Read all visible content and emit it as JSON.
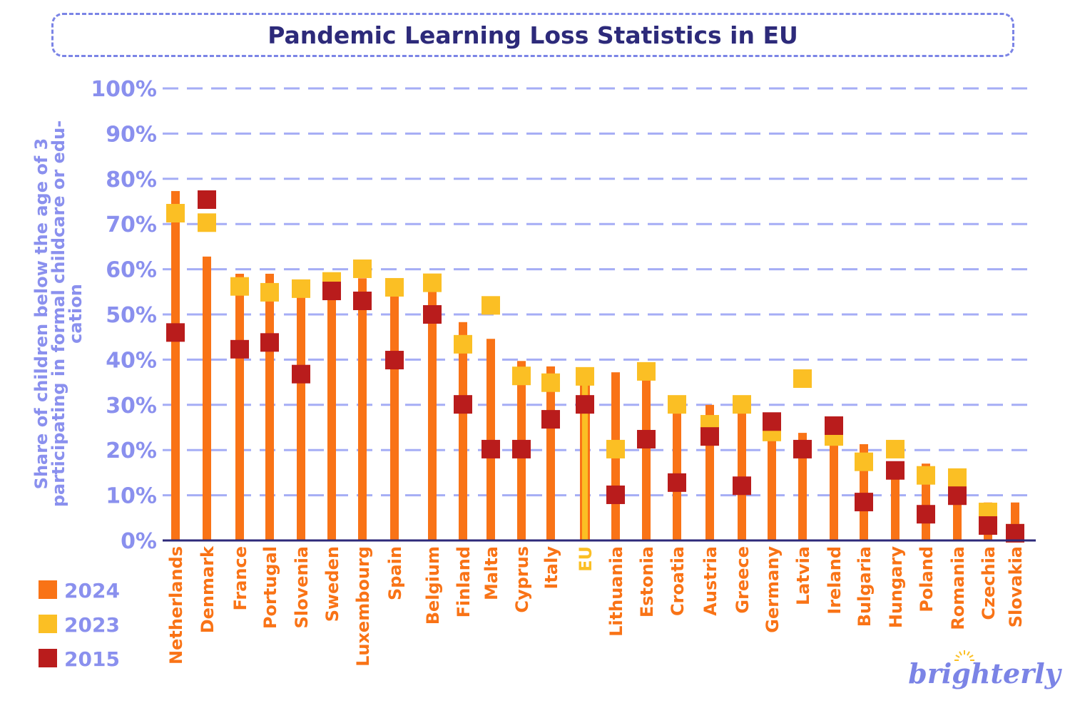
{
  "chart_data": {
    "type": "dot-bar",
    "title": "Pandemic Learning Loss Statistics in EU",
    "ylabel": [
      "Share of children below the age of 3",
      "participating in formal childcare or edu-",
      "cation"
    ],
    "ylim": [
      0,
      100
    ],
    "yticks": [
      "0%",
      "10%",
      "20%",
      "30%",
      "40%",
      "50%",
      "60%",
      "70%",
      "80%",
      "90%",
      "100%"
    ],
    "grid": true,
    "legend_position": "bottom-left",
    "categories": [
      "Netherlands",
      "Denmark",
      "France",
      "Portugal",
      "Slovenia",
      "Sweden",
      "Luxembourg",
      "Spain",
      "Belgium",
      "Finland",
      "Malta",
      "Cyprus",
      "Italy",
      "EU",
      "Lithuania",
      "Estonia",
      "Croatia",
      "Austria",
      "Greece",
      "Germany",
      "Latvia",
      "Ireland",
      "Bulgaria",
      "Hungary",
      "Poland",
      "Romania",
      "Czechia",
      "Slovakia"
    ],
    "highlight_category": "EU",
    "series": [
      {
        "name": "2024",
        "marker": "bar",
        "color": "#f97316",
        "values": [
          77.3,
          62.8,
          59.0,
          59.0,
          54.0,
          57.0,
          58.0,
          54.0,
          55.5,
          48.3,
          44.6,
          39.7,
          38.5,
          37.0,
          37.2,
          35.5,
          28.5,
          30.0,
          28.5,
          22.5,
          23.8,
          21.5,
          21.3,
          14.0,
          17.0,
          11.0,
          8.4,
          8.4
        ]
      },
      {
        "name": "2023",
        "marker": "square",
        "color": "#fbbf24",
        "values": [
          72.4,
          70.3,
          56.2,
          54.9,
          55.7,
          57.3,
          60.1,
          56.0,
          57.0,
          43.4,
          52.0,
          36.4,
          34.9,
          36.3,
          20.2,
          37.4,
          30.1,
          25.7,
          30.1,
          24.0,
          35.8,
          23.0,
          17.4,
          20.2,
          14.4,
          13.9,
          6.3,
          1.6
        ]
      },
      {
        "name": "2015",
        "marker": "square",
        "color": "#b91c1c",
        "values": [
          46.0,
          75.4,
          42.3,
          43.8,
          36.8,
          55.2,
          53.0,
          39.9,
          50.0,
          30.1,
          20.2,
          20.2,
          26.8,
          30.1,
          10.1,
          22.4,
          12.8,
          23.0,
          12.1,
          26.3,
          20.2,
          25.4,
          8.5,
          15.5,
          5.8,
          9.9,
          3.3,
          1.6
        ]
      }
    ]
  },
  "logo": "brighterly",
  "colors": {
    "axis": "#2d2a7a",
    "grid": "#a5adf5",
    "text_accent": "#8a90ee",
    "eu_label": "#fbbf24"
  }
}
